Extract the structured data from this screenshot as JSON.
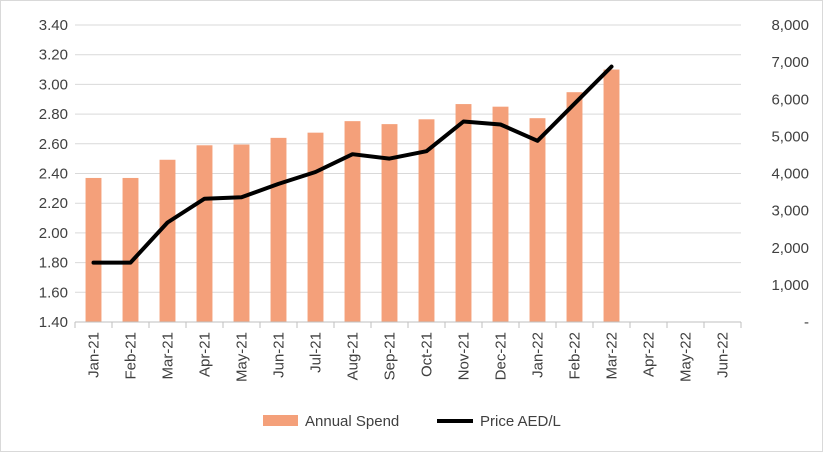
{
  "chart_data": {
    "type": "bar",
    "categories": [
      "Jan-21",
      "Feb-21",
      "Mar-21",
      "Apr-21",
      "May-21",
      "Jun-21",
      "Jul-21",
      "Aug-21",
      "Sep-21",
      "Oct-21",
      "Nov-21",
      "Dec-21",
      "Jan-22",
      "Feb-22",
      "Mar-22",
      "Apr-22",
      "May-22",
      "Jun-22"
    ],
    "series": [
      {
        "name": "Annual Spend",
        "type": "bar",
        "axis": "right",
        "color": "#f4a07a",
        "values": [
          3880,
          3880,
          4370,
          4760,
          4780,
          4960,
          5100,
          5410,
          5330,
          5460,
          5870,
          5800,
          5490,
          6190,
          6800,
          null,
          null,
          null
        ]
      },
      {
        "name": "Price AED/L",
        "type": "line",
        "axis": "left",
        "color": "#000000",
        "values": [
          1.8,
          1.8,
          2.07,
          2.23,
          2.24,
          2.33,
          2.41,
          2.53,
          2.5,
          2.55,
          2.75,
          2.73,
          2.62,
          2.87,
          3.12,
          null,
          null,
          null
        ]
      }
    ],
    "left_axis": {
      "min": 1.4,
      "max": 3.4,
      "step": 0.2,
      "ticks": [
        "1.40",
        "1.60",
        "1.80",
        "2.00",
        "2.20",
        "2.40",
        "2.60",
        "2.80",
        "3.00",
        "3.20",
        "3.40"
      ]
    },
    "right_axis": {
      "min": 0,
      "max": 8000,
      "step": 1000,
      "ticks": [
        "-",
        "1,000",
        "2,000",
        "3,000",
        "4,000",
        "5,000",
        "6,000",
        "7,000",
        "8,000"
      ]
    },
    "grid": true,
    "legend_position": "bottom",
    "title": "",
    "xlabel": "",
    "ylabel": ""
  }
}
